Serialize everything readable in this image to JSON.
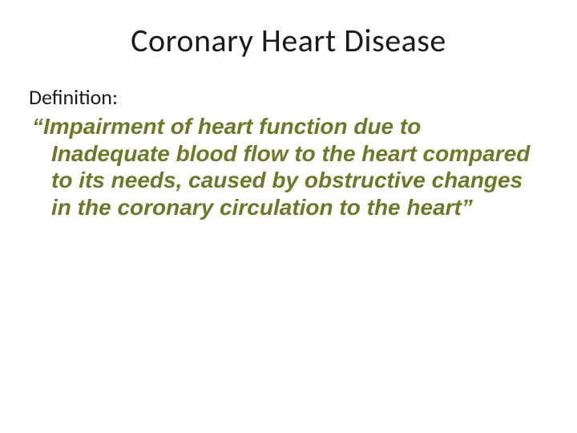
{
  "slide": {
    "title": "Coronary Heart Disease",
    "label": "Definition:",
    "quote": "“Impairment of heart function due to Inadequate blood flow to the heart compared to its needs, caused by obstructive changes in the coronary circulation to the heart”",
    "colors": {
      "title_color": "#1a1a1a",
      "label_color": "#1a1a1a",
      "quote_color": "#6a7a2a",
      "background": "#ffffff"
    },
    "typography": {
      "title_fontsize": 40,
      "label_fontsize": 26,
      "quote_fontsize": 28,
      "quote_weight": "bold",
      "quote_style": "italic"
    }
  }
}
